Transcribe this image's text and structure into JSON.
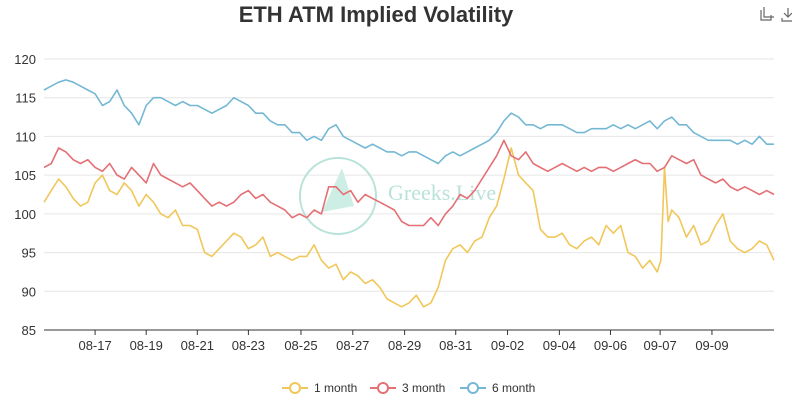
{
  "page": {
    "title": "ETH ATM Implied Volatility"
  },
  "toolbar": {
    "icons": [
      "restore-icon",
      "download-icon"
    ]
  },
  "watermark": {
    "text": "Greeks.Live"
  },
  "colors": {
    "1 month": "#f1c75a",
    "3 month": "#e46f74",
    "6 month": "#74b8d4",
    "grid": "#e6e6e6",
    "axis": "#333333",
    "text": "#333333",
    "watermark": "#b9e3da"
  },
  "chart_data": {
    "type": "line",
    "title": "ETH ATM Implied Volatility",
    "xlabel": "",
    "ylabel": "",
    "ylim": [
      85,
      120
    ],
    "yticks": [
      85,
      90,
      95,
      100,
      105,
      110,
      115,
      120
    ],
    "xlim": [
      0,
      100
    ],
    "xticks": [
      {
        "label": "08-17",
        "x": 7.0
      },
      {
        "label": "08-19",
        "x": 14.0
      },
      {
        "label": "08-21",
        "x": 21.0
      },
      {
        "label": "08-23",
        "x": 28.0
      },
      {
        "label": "08-25",
        "x": 35.2
      },
      {
        "label": "08-27",
        "x": 42.3
      },
      {
        "label": "08-29",
        "x": 49.4
      },
      {
        "label": "08-31",
        "x": 56.4
      },
      {
        "label": "09-02",
        "x": 63.5
      },
      {
        "label": "09-04",
        "x": 70.6
      },
      {
        "label": "09-06",
        "x": 77.6
      },
      {
        "label": "09-07",
        "x": 84.4
      },
      {
        "label": "09-09",
        "x": 91.5
      }
    ],
    "legend_position": "bottom",
    "grid": true,
    "series": [
      {
        "name": "1 month",
        "x": [
          0,
          1,
          2,
          3,
          4,
          5,
          6,
          7,
          8,
          9,
          10,
          11,
          12,
          13,
          14,
          15,
          16,
          17,
          18,
          19,
          20,
          21,
          22,
          23,
          24,
          25,
          26,
          27,
          28,
          29,
          30,
          31,
          32,
          33,
          34,
          35,
          36,
          37,
          38,
          39,
          40,
          41,
          42,
          43,
          44,
          45,
          46,
          47,
          48,
          49,
          50,
          51,
          52,
          53,
          54,
          55,
          56,
          57,
          58,
          59,
          60,
          61,
          62,
          63,
          64,
          65,
          66,
          67,
          68,
          69,
          70,
          71,
          72,
          73,
          74,
          75,
          76,
          77,
          78,
          79,
          80,
          81,
          82,
          83,
          84,
          84.5,
          85,
          85.5,
          86,
          87,
          88,
          89,
          90,
          91,
          92,
          93,
          94,
          95,
          96,
          97,
          98,
          99,
          100
        ],
        "values": [
          101.5,
          103,
          104.5,
          103.5,
          102,
          101,
          101.5,
          104,
          105,
          103,
          102.5,
          104,
          103,
          101,
          102.5,
          101.5,
          100,
          99.5,
          100.5,
          98.5,
          98.5,
          98,
          95,
          94.5,
          95.5,
          96.5,
          97.5,
          97,
          95.5,
          96,
          97,
          94.5,
          95,
          94.5,
          94,
          94.5,
          94.5,
          96,
          94,
          93,
          93.5,
          91.5,
          92.5,
          92,
          91,
          91.5,
          90.5,
          89,
          88.5,
          88,
          88.5,
          89.5,
          88,
          88.5,
          90.5,
          94,
          95.5,
          96,
          95,
          96.5,
          97,
          99.5,
          101,
          104.5,
          108.5,
          105,
          104,
          103,
          98,
          97,
          97,
          97.5,
          96,
          95.5,
          96.5,
          97,
          96,
          98.5,
          97.5,
          98.5,
          95,
          94.5,
          93,
          94,
          92.5,
          94,
          106,
          99,
          100.5,
          99.5,
          97,
          98.5,
          96,
          96.5,
          98.5,
          100,
          96.5,
          95.5,
          95,
          95.5,
          96.5,
          96,
          94
        ]
      },
      {
        "name": "3 month",
        "x": [
          0,
          1,
          2,
          3,
          4,
          5,
          6,
          7,
          8,
          9,
          10,
          11,
          12,
          13,
          14,
          15,
          16,
          17,
          18,
          19,
          20,
          21,
          22,
          23,
          24,
          25,
          26,
          27,
          28,
          29,
          30,
          31,
          32,
          33,
          34,
          35,
          36,
          37,
          38,
          39,
          40,
          41,
          42,
          43,
          44,
          45,
          46,
          47,
          48,
          49,
          50,
          51,
          52,
          53,
          54,
          55,
          56,
          57,
          58,
          59,
          60,
          61,
          62,
          63,
          64,
          65,
          66,
          67,
          68,
          69,
          70,
          71,
          72,
          73,
          74,
          75,
          76,
          77,
          78,
          79,
          80,
          81,
          82,
          83,
          84,
          85,
          86,
          87,
          88,
          89,
          90,
          91,
          92,
          93,
          94,
          95,
          96,
          97,
          98,
          99,
          100
        ],
        "values": [
          106,
          106.5,
          108.5,
          108,
          107,
          106.5,
          107,
          106,
          105.5,
          106.5,
          105,
          104.5,
          106,
          105,
          104,
          106.5,
          105,
          104.5,
          104,
          103.5,
          104,
          103,
          102,
          101,
          101.5,
          101,
          101.5,
          102.5,
          103,
          102,
          102.5,
          101.5,
          101,
          100.5,
          99.5,
          100,
          99.5,
          100.5,
          100,
          103.5,
          103.5,
          102.5,
          103,
          101.5,
          102.5,
          102,
          101.5,
          101,
          100.5,
          99,
          98.5,
          98.5,
          98.5,
          99.5,
          98.5,
          100,
          101,
          102.5,
          102,
          103,
          104.5,
          106,
          107.5,
          109.5,
          107.5,
          107,
          108,
          106.5,
          106,
          105.5,
          106,
          106.5,
          106,
          105.5,
          106,
          105.5,
          106,
          106,
          105.5,
          106,
          106.5,
          107,
          106.5,
          106.5,
          105.5,
          106,
          107.5,
          107,
          106.5,
          107,
          105,
          104.5,
          104,
          104.5,
          103.5,
          103,
          103.5,
          103,
          102.5,
          103,
          102.5
        ]
      },
      {
        "name": "6 month",
        "x": [
          0,
          1,
          2,
          3,
          4,
          5,
          6,
          7,
          8,
          9,
          10,
          11,
          12,
          13,
          14,
          15,
          16,
          17,
          18,
          19,
          20,
          21,
          22,
          23,
          24,
          25,
          26,
          27,
          28,
          29,
          30,
          31,
          32,
          33,
          34,
          35,
          36,
          37,
          38,
          39,
          40,
          41,
          42,
          43,
          44,
          45,
          46,
          47,
          48,
          49,
          50,
          51,
          52,
          53,
          54,
          55,
          56,
          57,
          58,
          59,
          60,
          61,
          62,
          63,
          64,
          65,
          66,
          67,
          68,
          69,
          70,
          71,
          72,
          73,
          74,
          75,
          76,
          77,
          78,
          79,
          80,
          81,
          82,
          83,
          84,
          85,
          86,
          87,
          88,
          89,
          90,
          91,
          92,
          93,
          94,
          95,
          96,
          97,
          98,
          99,
          100
        ],
        "values": [
          116,
          116.5,
          117,
          117.3,
          117,
          116.5,
          116,
          115.5,
          114,
          114.5,
          116,
          114,
          113,
          111.5,
          114,
          115,
          115,
          114.5,
          114,
          114.5,
          114,
          114,
          113.5,
          113,
          113.5,
          114,
          115,
          114.5,
          114,
          113,
          113,
          112,
          111.5,
          111.5,
          110.5,
          110.5,
          109.5,
          110,
          109.5,
          111,
          111.5,
          110,
          109.5,
          109,
          108.5,
          109,
          108.5,
          108,
          108,
          107.5,
          108,
          108,
          107.5,
          107,
          106.5,
          107.5,
          108,
          107.5,
          108,
          108.5,
          109,
          109.5,
          110.5,
          112,
          113,
          112.5,
          111.5,
          111.5,
          111,
          111.5,
          111.5,
          111.5,
          111,
          110.5,
          110.5,
          111,
          111,
          111,
          111.5,
          111,
          111.5,
          111,
          111.5,
          112,
          111,
          112,
          112.5,
          111.5,
          111.5,
          110.5,
          110,
          109.5,
          109.5,
          109.5,
          109.5,
          109,
          109.5,
          109,
          110,
          109,
          109
        ]
      }
    ]
  }
}
